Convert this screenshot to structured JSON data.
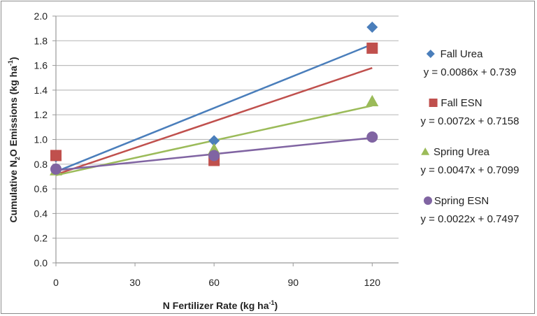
{
  "chart_data": {
    "type": "scatter",
    "xlabel": "N Fertilizer Rate (kg ha",
    "xlabel_sup": "-1",
    "xlabel_end": ")",
    "ylabel": "Cumulative N",
    "ylabel_sub": "2",
    "ylabel_mid": "O Emissions (kg ha",
    "ylabel_sup": "-1",
    "ylabel_end": ")",
    "xlim": [
      0,
      130
    ],
    "ylim": [
      0,
      2.0
    ],
    "xticks": [
      "0",
      "30",
      "60",
      "90",
      "120"
    ],
    "yticks": [
      "0.0",
      "0.2",
      "0.4",
      "0.6",
      "0.8",
      "1.0",
      "1.2",
      "1.4",
      "1.6",
      "1.8",
      "2.0"
    ],
    "grid": "horizontal",
    "legend_position": "right",
    "x": [
      0,
      60,
      120
    ],
    "series": [
      {
        "name": "Fall Urea",
        "marker": "diamond",
        "color": "#4a7ebb",
        "values": [
          0.86,
          0.99,
          1.91
        ],
        "trendline": {
          "slope": 0.0086,
          "intercept": 0.739
        },
        "equation": "y = 0.0086x + 0.739"
      },
      {
        "name": "Fall ESN",
        "marker": "square",
        "color": "#c0504d",
        "values": [
          0.87,
          0.83,
          1.74
        ],
        "trendline": {
          "slope": 0.0072,
          "intercept": 0.7158
        },
        "equation": "y = 0.0072x + 0.7158"
      },
      {
        "name": "Spring Urea",
        "marker": "triangle",
        "color": "#9bbb59",
        "values": [
          0.75,
          0.92,
          1.31
        ],
        "trendline": {
          "slope": 0.0047,
          "intercept": 0.7099
        },
        "equation": "y = 0.0047x + 0.7099"
      },
      {
        "name": "Spring ESN",
        "marker": "circle",
        "color": "#8064a2",
        "values": [
          0.76,
          0.87,
          1.02
        ],
        "trendline": {
          "slope": 0.0022,
          "intercept": 0.7497
        },
        "equation": "y = 0.0022x + 0.7497"
      }
    ]
  }
}
